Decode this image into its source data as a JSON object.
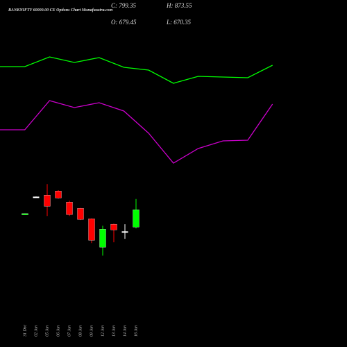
{
  "chart_data": [
    {
      "type": "candlestick",
      "title": "BANKNIFTY 60000.00 CE Options Chart Munafasutra.com",
      "summary": [
        "C: 799.35",
        "H: 873.55",
        "O: 679.45",
        "L: 670.35"
      ],
      "categories": [
        "31 Dec",
        "02 Jun",
        "05 Jun",
        "06 Jun",
        "07 Jun",
        "08 Jun",
        "09 Jun",
        "12 Jun",
        "13 Jun",
        "14 Jun",
        "16 Jun"
      ],
      "open": [
        768,
        890,
        900,
        929,
        852,
        809,
        737,
        540,
        699,
        650,
        679.45
      ],
      "high": [
        773,
        891,
        977,
        935,
        862,
        812,
        740,
        689,
        703,
        699,
        873.55
      ],
      "low": [
        768,
        889,
        756,
        876,
        756,
        728,
        569,
        482,
        574,
        598,
        670.35
      ],
      "close": [
        773,
        890,
        823,
        881,
        766,
        732,
        588,
        665,
        660,
        650,
        799.35
      ],
      "up_color": "#00ff00",
      "down_color": "#ff0000",
      "flat_color": "#ffffff",
      "ylim": [
        450,
        1050
      ]
    },
    {
      "type": "line",
      "categories": [
        null,
        null,
        null,
        null,
        null,
        null,
        null,
        null,
        null,
        null,
        null,
        null
      ],
      "series": [
        {
          "color": "#00ff00",
          "values": [
            404,
            404,
            418,
            410,
            417,
            403,
            399,
            380,
            390,
            389,
            388,
            406
          ]
        },
        {
          "color": "#cc00cc",
          "values": [
            313,
            313,
            355,
            345,
            352,
            340,
            308,
            265,
            286,
            297,
            298,
            350
          ]
        }
      ],
      "ylim": [
        0,
        500
      ]
    }
  ]
}
